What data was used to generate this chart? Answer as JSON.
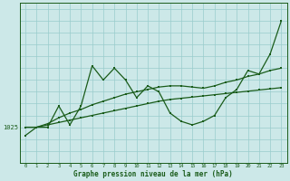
{
  "xlabel": "Graphe pression niveau de la mer (hPa)",
  "background_color": "#cce8e8",
  "grid_color": "#99cccc",
  "line_color": "#1a5c1a",
  "x_ticks": [
    0,
    1,
    2,
    3,
    4,
    5,
    6,
    7,
    8,
    9,
    10,
    11,
    12,
    13,
    14,
    15,
    16,
    17,
    18,
    19,
    20,
    21,
    22,
    23
  ],
  "series1": [
    1024.3,
    1025.0,
    1025.0,
    1026.8,
    1025.2,
    1026.8,
    1030.2,
    1029.0,
    1030.0,
    1029.0,
    1027.5,
    1028.5,
    1028.0,
    1026.2,
    1025.5,
    1025.2,
    1025.5,
    1026.0,
    1027.5,
    1028.2,
    1029.8,
    1029.5,
    1031.2,
    1034.0
  ],
  "series2": [
    1025.0,
    1025.0,
    1025.3,
    1025.8,
    1026.2,
    1026.5,
    1026.9,
    1027.2,
    1027.5,
    1027.8,
    1028.0,
    1028.2,
    1028.4,
    1028.5,
    1028.5,
    1028.4,
    1028.3,
    1028.5,
    1028.8,
    1029.0,
    1029.3,
    1029.5,
    1029.8,
    1030.0
  ],
  "series3": [
    1025.0,
    1025.0,
    1025.2,
    1025.4,
    1025.6,
    1025.8,
    1026.0,
    1026.2,
    1026.4,
    1026.6,
    1026.8,
    1027.0,
    1027.2,
    1027.35,
    1027.45,
    1027.55,
    1027.65,
    1027.75,
    1027.85,
    1027.95,
    1028.05,
    1028.15,
    1028.25,
    1028.35
  ],
  "ytick_label": "1025",
  "ytick_val": 1025,
  "ylim_min": 1022.0,
  "ylim_max": 1035.5,
  "xlim_min": -0.5,
  "xlim_max": 23.5
}
